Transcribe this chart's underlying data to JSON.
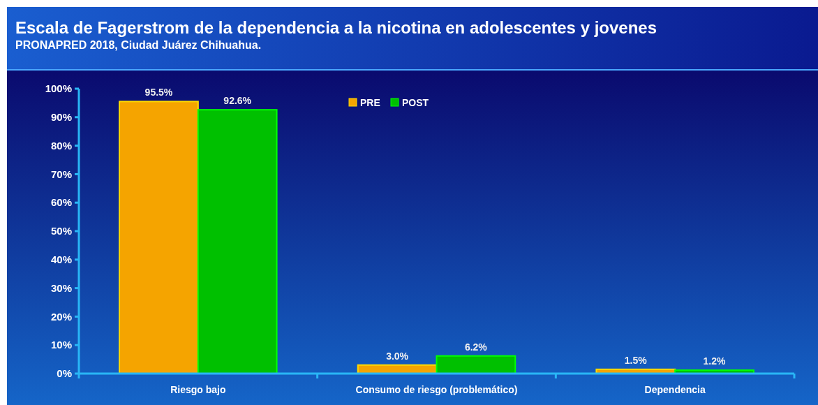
{
  "chart_data": {
    "type": "bar",
    "title": "Escala de Fagerstrom de la dependencia a la nicotina en adolescentes y jovenes",
    "subtitle": "PRONAPRED 2018, Ciudad Juárez Chihuahua.",
    "categories": [
      "Riesgo bajo",
      "Consumo de riesgo (problemático)",
      "Dependencia"
    ],
    "series": [
      {
        "name": "PRE",
        "color": "#f5a400",
        "values": [
          95.5,
          3.0,
          1.5
        ],
        "value_labels": [
          "95.5%",
          "3.0%",
          "1.5%"
        ]
      },
      {
        "name": "POST",
        "color": "#00c000",
        "values": [
          92.6,
          6.2,
          1.2
        ],
        "value_labels": [
          "92.6%",
          "6.2%",
          "1.2%"
        ]
      }
    ],
    "ylim": [
      0,
      100
    ],
    "yticks": [
      {
        "value": 0,
        "label": "0%"
      },
      {
        "value": 10,
        "label": "10%"
      },
      {
        "value": 20,
        "label": "20%"
      },
      {
        "value": 30,
        "label": "30%"
      },
      {
        "value": 40,
        "label": "40%"
      },
      {
        "value": 50,
        "label": "50%"
      },
      {
        "value": 60,
        "label": "60%"
      },
      {
        "value": 70,
        "label": "70%"
      },
      {
        "value": 80,
        "label": "80%"
      },
      {
        "value": 90,
        "label": "90%"
      },
      {
        "value": 100,
        "label": "100%"
      }
    ],
    "legend": "top",
    "grid": false
  }
}
